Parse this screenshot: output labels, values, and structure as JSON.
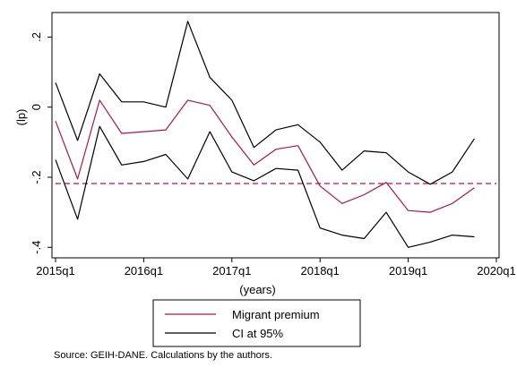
{
  "chart_data": {
    "type": "line",
    "xlabel": "(years)",
    "ylabel": "(lp)",
    "x_ticks": [
      "2015q1",
      "2016q1",
      "2017q1",
      "2018q1",
      "2019q1",
      "2020q1"
    ],
    "y_ticks": [
      ".2",
      "0",
      "-.2",
      "-.4"
    ],
    "y_tick_values": [
      0.2,
      0,
      -0.2,
      -0.4
    ],
    "ylim": [
      -0.43,
      0.27
    ],
    "xlim": [
      "2015q1",
      "2020q1"
    ],
    "x": [
      "2015q1",
      "2015q2",
      "2015q3",
      "2015q4",
      "2016q1",
      "2016q2",
      "2016q3",
      "2016q4",
      "2017q1",
      "2017q2",
      "2017q3",
      "2017q4",
      "2018q1",
      "2018q2",
      "2018q3",
      "2018q4",
      "2019q1",
      "2019q2",
      "2019q3",
      "2019q4"
    ],
    "series": [
      {
        "name": "Migrant premium",
        "color": "#b0154a",
        "style": "solid",
        "values": [
          -0.04,
          -0.205,
          0.02,
          -0.075,
          -0.07,
          -0.065,
          0.02,
          0.005,
          -0.085,
          -0.165,
          -0.12,
          -0.11,
          -0.225,
          -0.275,
          -0.25,
          -0.215,
          -0.295,
          -0.3,
          -0.275,
          -0.23
        ]
      },
      {
        "name": "CI at 95%",
        "color": "#000000",
        "style": "solid",
        "values": [
          0.07,
          -0.095,
          0.095,
          0.015,
          0.015,
          0.0,
          0.245,
          0.085,
          0.02,
          -0.115,
          -0.065,
          -0.05,
          -0.1,
          -0.18,
          -0.125,
          -0.13,
          -0.185,
          -0.22,
          -0.185,
          -0.09
        ]
      },
      {
        "name": "CI at 95% lower",
        "color": "#000000",
        "style": "solid",
        "values": [
          -0.15,
          -0.32,
          -0.055,
          -0.165,
          -0.155,
          -0.135,
          -0.205,
          -0.07,
          -0.185,
          -0.21,
          -0.175,
          -0.18,
          -0.345,
          -0.365,
          -0.375,
          -0.3,
          -0.4,
          -0.385,
          -0.365,
          -0.37
        ]
      }
    ],
    "reference_line": {
      "y": -0.218,
      "color": "#b0154a",
      "style": "dashed"
    },
    "legend": {
      "placement": "bottom",
      "entries": [
        {
          "label": "Migrant premium",
          "color": "#b0154a"
        },
        {
          "label": "CI at 95%",
          "color": "#000000"
        }
      ]
    },
    "note": "Source: GEIH-DANE. Calculations by the authors.",
    "grid": false
  }
}
